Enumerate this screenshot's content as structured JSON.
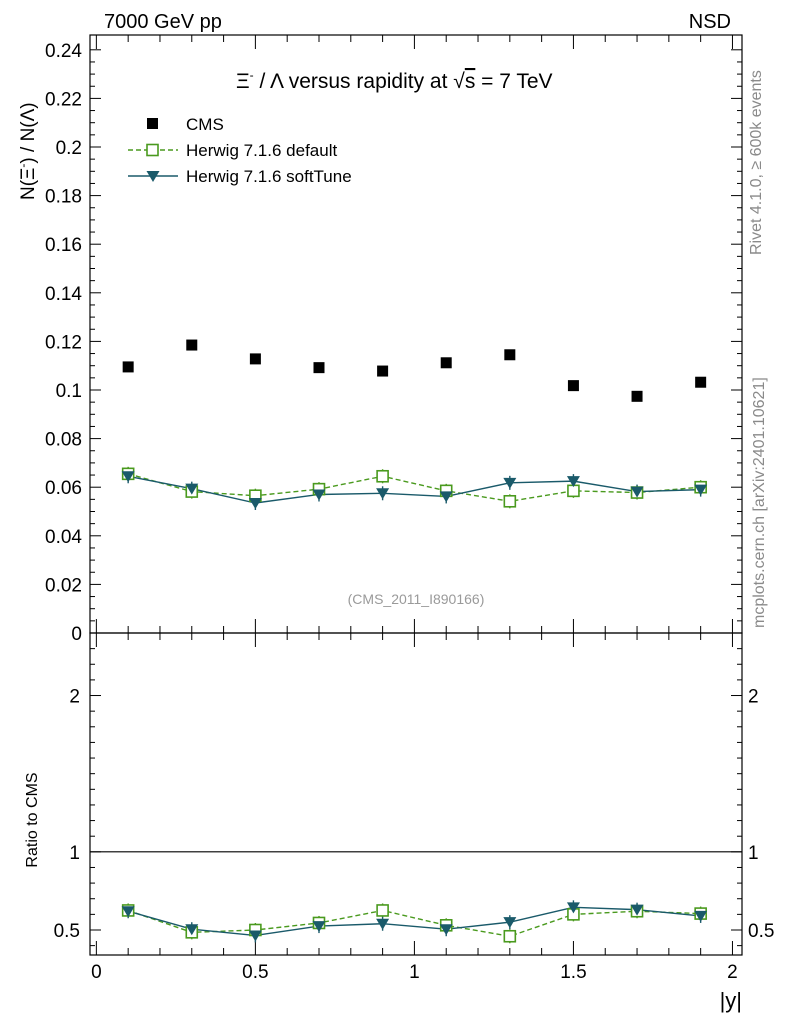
{
  "header": {
    "left": "7000 GeV pp",
    "right": "NSD"
  },
  "side_labels": {
    "generator": "Rivet 4.1.0, ≥ 600k events",
    "source": "mcplots.cern.ch [arXiv:2401.10621]"
  },
  "colors": {
    "cms": "#000000",
    "default": "#4a9a1e",
    "softtune": "#1a5a6a"
  },
  "chart_data": [
    {
      "type": "scatter",
      "title": "Ξ⁻ / Λ versus rapidity at √s = 7 TeV",
      "title_parts": {
        "xi": "Ξ",
        "xi_sup": "-",
        "mid": " / Λ versus rapidity at ",
        "sqrt": "√",
        "s": "s",
        "tail": " = 7 TeV"
      },
      "ylabel": "N(Ξ⁻) / N(Λ)",
      "ylabel_parts": {
        "pre": "N(Ξ",
        "sup": "-",
        "post": ")  / N(Λ)"
      },
      "watermark": "(CMS_2011_I890166)",
      "ylim": [
        0,
        0.25
      ],
      "yticks": [
        0,
        0.02,
        0.04,
        0.06,
        0.08,
        0.1,
        0.12,
        0.14,
        0.16,
        0.18,
        0.2,
        0.22,
        0.24
      ],
      "ytick_labels": [
        "0",
        "0.02",
        "0.04",
        "0.06",
        "0.08",
        "0.1",
        "0.12",
        "0.14",
        "0.16",
        "0.18",
        "0.2",
        "0.22",
        "0.24"
      ],
      "x": [
        0.1,
        0.3,
        0.5,
        0.7,
        0.9,
        1.1,
        1.3,
        1.5,
        1.7,
        1.9
      ],
      "series": [
        {
          "name": "CMS",
          "marker": "square",
          "values": [
            0.1095,
            0.1185,
            0.1128,
            0.1092,
            0.1078,
            0.1112,
            0.1145,
            0.1018,
            0.0974,
            0.1032
          ]
        },
        {
          "name": "Herwig 7.1.6 default",
          "marker": "open-square",
          "line": "dashed",
          "values": [
            0.0655,
            0.0582,
            0.0565,
            0.0592,
            0.0645,
            0.0585,
            0.0542,
            0.0585,
            0.0578,
            0.06
          ]
        },
        {
          "name": "Herwig 7.1.6 softTune",
          "marker": "triangle-down",
          "line": "solid",
          "values": [
            0.0645,
            0.0594,
            0.0535,
            0.057,
            0.0575,
            0.0562,
            0.0618,
            0.0625,
            0.0582,
            0.059
          ]
        }
      ]
    },
    {
      "type": "scatter",
      "ylabel": "Ratio to CMS",
      "xlabel": "|y|",
      "ylim": [
        0.34,
        2.4
      ],
      "yticks": [
        0.5,
        1,
        2
      ],
      "ytick_labels": [
        "0.5",
        "1",
        "2"
      ],
      "xlim": [
        -0.02,
        2.03
      ],
      "xticks": [
        0,
        0.5,
        1,
        1.5,
        2
      ],
      "xtick_labels": [
        "0",
        "0.5",
        "1",
        "1.5",
        "2"
      ],
      "reference": 1,
      "x": [
        0.1,
        0.3,
        0.5,
        0.7,
        0.9,
        1.1,
        1.3,
        1.5,
        1.7,
        1.9
      ],
      "series": [
        {
          "name": "Herwig 7.1.6 default",
          "values": [
            0.625,
            0.485,
            0.5,
            0.545,
            0.625,
            0.53,
            0.46,
            0.6,
            0.62,
            0.605
          ]
        },
        {
          "name": "Herwig 7.1.6 softTune",
          "values": [
            0.62,
            0.505,
            0.465,
            0.525,
            0.54,
            0.505,
            0.55,
            0.645,
            0.63,
            0.59
          ]
        }
      ]
    }
  ]
}
